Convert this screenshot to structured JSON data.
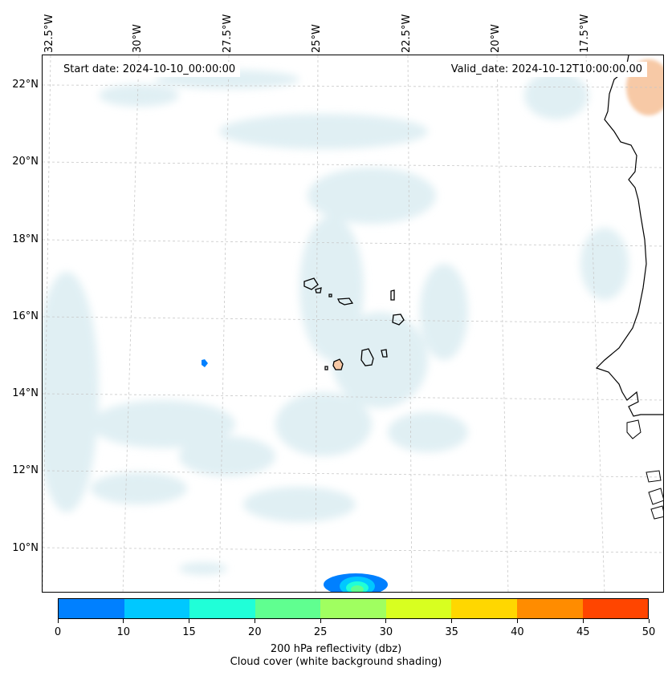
{
  "map": {
    "lon_labels": [
      "32.5°W",
      "30°W",
      "27.5°W",
      "25°W",
      "22.5°W",
      "20°W",
      "17.5°W"
    ],
    "lat_labels": [
      "22°N",
      "20°N",
      "18°N",
      "16°N",
      "14°N",
      "12°N",
      "10°N"
    ],
    "start_date": "Start date: 2024-10-10_00:00:00",
    "valid_date": "Valid_date: 2024-10-12T10:00:00.00"
  },
  "colorbar": {
    "ticks": [
      "0",
      "10",
      "15",
      "20",
      "25",
      "30",
      "35",
      "40",
      "45",
      "50"
    ],
    "colors": [
      "#0080ff",
      "#00c8ff",
      "#20ffd8",
      "#60ff90",
      "#a0ff60",
      "#d8ff20",
      "#ffd700",
      "#ff8c00",
      "#ff4500"
    ],
    "label": "200 hPa reflectivity (dbz)",
    "sublabel": "Cloud cover (white background shading)"
  },
  "colors": {
    "cloud": "#d6eaf0",
    "warm_shading": "#f7c9a6",
    "coast": "#000000",
    "grid": "#c8c8c8"
  }
}
